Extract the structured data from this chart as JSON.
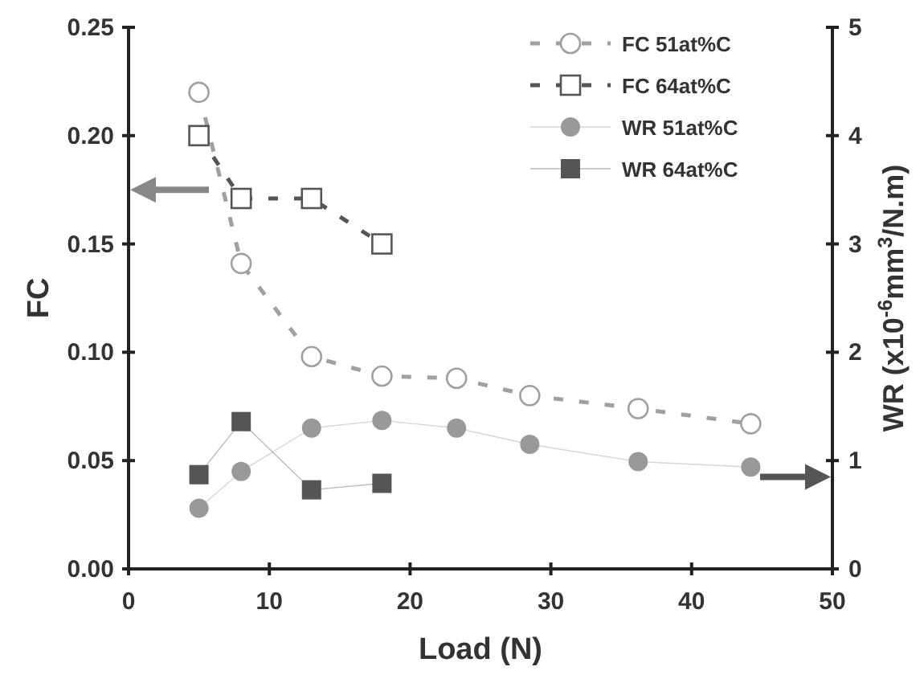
{
  "chart_data": {
    "type": "line",
    "xlabel": "Load (N)",
    "ylabel": "FC",
    "y2label": "WR (x10$^{-6}$mm$^{3}$/N.m)",
    "xlim": [
      0,
      50
    ],
    "xticks": [
      0,
      10,
      20,
      30,
      40,
      50
    ],
    "ylim": [
      0,
      0.25
    ],
    "yticks": [
      {
        "value": 0,
        "label": "0.00"
      },
      {
        "value": 0.05,
        "label": "0.05"
      },
      {
        "value": 0.1,
        "label": "0.10"
      },
      {
        "value": 0.15,
        "label": "0.15"
      },
      {
        "value": 0.2,
        "label": "0.20"
      },
      {
        "value": 0.25,
        "label": "0.25"
      }
    ],
    "y2lim": [
      0,
      5
    ],
    "y2ticks": [
      0,
      1,
      2,
      3,
      4,
      5
    ],
    "legend": "top right",
    "grid": false,
    "series": [
      {
        "name": "FC 51at%C",
        "color": "#a0a0a0",
        "marker": "circle",
        "line_style": "dashed",
        "x": [
          5,
          8,
          13,
          18,
          23.3,
          28.5,
          36.2,
          44.2
        ],
        "values": [
          0.22,
          0.141,
          0.098,
          0.089,
          0.088,
          0.08,
          0.074,
          0.067
        ]
      },
      {
        "name": "FC 64at%C",
        "color": "#555555",
        "marker": "square",
        "line_style": "dashed",
        "x": [
          5,
          8,
          13,
          18
        ],
        "values": [
          0.2,
          0.171,
          0.171,
          0.15
        ]
      },
      {
        "name": "WR 51at%C",
        "color": "#999999",
        "marker": "circle",
        "line_style": "solid",
        "axis": "y2",
        "x": [
          5,
          8,
          13,
          18,
          23.3,
          28.5,
          36.2,
          44.2
        ],
        "values": [
          0.56,
          0.9,
          1.3,
          1.37,
          1.3,
          1.15,
          0.99,
          0.94
        ]
      },
      {
        "name": "WR 64at%C",
        "color": "#555555",
        "marker": "square",
        "line_style": "solid",
        "axis": "y2",
        "x": [
          5,
          8,
          13,
          18
        ],
        "values": [
          0.87,
          1.36,
          0.73,
          0.79
        ]
      }
    ]
  }
}
